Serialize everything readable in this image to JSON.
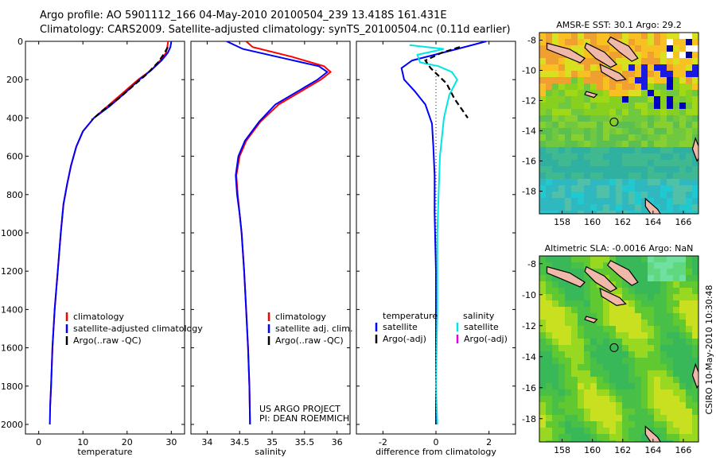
{
  "header": {
    "line1": "Argo profile: AO 5901112_166 04-May-2010 20100504_239 13.418S 161.431E",
    "line2": "Climatology: CARS2009. Satellite-adjusted climatology: synTS_20100504.nc (0.11d earlier)"
  },
  "credit": "CSIRO 10-May-2010 10:30:48",
  "colors": {
    "climatology": "#ff0000",
    "satellite": "#0000ff",
    "argo": "#000000",
    "sat_diff_sal": "#00e5e5",
    "argo_diff_sal": "#e000e0"
  },
  "chart_data": [
    {
      "type": "line",
      "id": "temperature",
      "xlabel": "temperature",
      "ylabel": "",
      "xlim": [
        -3,
        33
      ],
      "ylim": [
        2050,
        0
      ],
      "xticks": [
        0,
        10,
        20,
        30
      ],
      "yticks": [
        0,
        200,
        400,
        600,
        800,
        1000,
        1200,
        1400,
        1600,
        1800,
        2000
      ],
      "legend": {
        "position": "bottom-right",
        "entries": [
          "climatology",
          "satellite-adjusted climatology",
          "Argo(..raw -QC)"
        ]
      },
      "series": [
        {
          "name": "climatology",
          "color": "#ff0000",
          "points": [
            [
              29.3,
              0
            ],
            [
              29.1,
              30
            ],
            [
              28.8,
              60
            ],
            [
              27.5,
              100
            ],
            [
              25.5,
              150
            ],
            [
              22.5,
              200
            ],
            [
              19,
              270
            ],
            [
              15.5,
              340
            ],
            [
              12.5,
              400
            ],
            [
              10,
              470
            ],
            [
              8.5,
              550
            ],
            [
              7.3,
              650
            ],
            [
              6.4,
              750
            ],
            [
              5.6,
              850
            ],
            [
              5,
              1000
            ],
            [
              4.3,
              1200
            ],
            [
              3.6,
              1400
            ],
            [
              3.1,
              1600
            ],
            [
              2.8,
              1800
            ],
            [
              2.6,
              1900
            ]
          ]
        },
        {
          "name": "satellite-adjusted climatology",
          "color": "#0000ff",
          "points": [
            [
              30,
              0
            ],
            [
              29.8,
              30
            ],
            [
              29.2,
              60
            ],
            [
              27.8,
              100
            ],
            [
              25.5,
              150
            ],
            [
              22.8,
              200
            ],
            [
              19.5,
              270
            ],
            [
              16,
              340
            ],
            [
              12.5,
              400
            ],
            [
              10,
              470
            ],
            [
              8.5,
              550
            ],
            [
              7.3,
              650
            ],
            [
              6.4,
              750
            ],
            [
              5.6,
              850
            ],
            [
              5,
              1000
            ],
            [
              4.3,
              1200
            ],
            [
              3.6,
              1400
            ],
            [
              3.1,
              1600
            ],
            [
              2.8,
              1800
            ],
            [
              2.6,
              1900
            ],
            [
              2.5,
              2000
            ]
          ]
        },
        {
          "name": "Argo(..raw -QC)",
          "color": "#000000",
          "dashed": true,
          "points": [
            [
              29.2,
              30
            ],
            [
              28.5,
              60
            ],
            [
              27,
              110
            ],
            [
              24.5,
              170
            ],
            [
              21.5,
              230
            ],
            [
              18,
              300
            ],
            [
              14.5,
              360
            ],
            [
              12,
              410
            ]
          ]
        }
      ]
    },
    {
      "type": "line",
      "id": "salinity",
      "xlabel": "salinity",
      "ylabel": "",
      "xlim": [
        33.75,
        36.2
      ],
      "ylim": [
        2050,
        0
      ],
      "xticks": [
        34,
        34.5,
        35,
        35.5,
        36
      ],
      "legend": {
        "position": "bottom-right",
        "entries": [
          "climatology",
          "satellite adj. clim.",
          "Argo(..raw -QC)"
        ]
      },
      "annotation": [
        "US ARGO PROJECT",
        "PI: DEAN ROEMMICH"
      ],
      "series": [
        {
          "name": "climatology",
          "color": "#ff0000",
          "points": [
            [
              34.6,
              0
            ],
            [
              34.7,
              30
            ],
            [
              35.3,
              80
            ],
            [
              35.8,
              130
            ],
            [
              35.9,
              160
            ],
            [
              35.75,
              200
            ],
            [
              35.45,
              260
            ],
            [
              35.1,
              330
            ],
            [
              34.82,
              420
            ],
            [
              34.6,
              520
            ],
            [
              34.5,
              600
            ],
            [
              34.45,
              700
            ],
            [
              34.47,
              800
            ],
            [
              34.5,
              900
            ],
            [
              34.53,
              1000
            ],
            [
              34.57,
              1200
            ],
            [
              34.6,
              1400
            ],
            [
              34.63,
              1600
            ],
            [
              34.65,
              1800
            ],
            [
              34.66,
              2000
            ]
          ]
        },
        {
          "name": "satellite adj. clim.",
          "color": "#0000ff",
          "points": [
            [
              34.3,
              0
            ],
            [
              34.55,
              40
            ],
            [
              35.2,
              90
            ],
            [
              35.72,
              130
            ],
            [
              35.85,
              160
            ],
            [
              35.7,
              200
            ],
            [
              35.4,
              260
            ],
            [
              35.05,
              330
            ],
            [
              34.8,
              420
            ],
            [
              34.58,
              520
            ],
            [
              34.48,
              600
            ],
            [
              34.44,
              700
            ],
            [
              34.46,
              800
            ],
            [
              34.5,
              900
            ],
            [
              34.53,
              1000
            ],
            [
              34.57,
              1200
            ],
            [
              34.6,
              1400
            ],
            [
              34.63,
              1600
            ],
            [
              34.65,
              1800
            ],
            [
              34.66,
              2000
            ]
          ]
        }
      ]
    },
    {
      "type": "line",
      "id": "difference",
      "xlabel": "difference from climatology",
      "ylabel": "",
      "xlim": [
        -3,
        3
      ],
      "ylim": [
        2050,
        0
      ],
      "xticks": [
        -2,
        0,
        2
      ],
      "legend": {
        "position": "bottom",
        "col1_title": "temperature",
        "col2_title": "salinity",
        "entries": [
          "satellite",
          "Argo(-adj)",
          "satellite",
          "Argo(-adj)"
        ]
      },
      "series": [
        {
          "name": "temperature satellite",
          "color": "#0000ff",
          "points": [
            [
              1.9,
              0
            ],
            [
              0.8,
              40
            ],
            [
              -0.9,
              100
            ],
            [
              -1.3,
              140
            ],
            [
              -1.2,
              200
            ],
            [
              -0.8,
              260
            ],
            [
              -0.4,
              330
            ],
            [
              -0.15,
              430
            ],
            [
              -0.1,
              550
            ],
            [
              -0.05,
              700
            ],
            [
              -0.05,
              900
            ],
            [
              0,
              1200
            ],
            [
              0,
              1500
            ],
            [
              0,
              1800
            ],
            [
              0,
              2000
            ]
          ]
        },
        {
          "name": "salinity satellite",
          "color": "#00e5e5",
          "points": [
            [
              -1,
              20
            ],
            [
              0.3,
              40
            ],
            [
              -0.7,
              70
            ],
            [
              -0.6,
              110
            ],
            [
              0.1,
              130
            ],
            [
              0.6,
              160
            ],
            [
              0.8,
              200
            ],
            [
              0.5,
              280
            ],
            [
              0.3,
              400
            ],
            [
              0.15,
              600
            ],
            [
              0.1,
              800
            ],
            [
              0.05,
              1000
            ],
            [
              0.05,
              1400
            ],
            [
              0,
              1800
            ],
            [
              0.05,
              2000
            ]
          ]
        },
        {
          "name": "temperature Argo(-adj)",
          "color": "#000000",
          "dashed": true,
          "points": [
            [
              0.9,
              30
            ],
            [
              0.2,
              60
            ],
            [
              -0.4,
              100
            ],
            [
              -0.2,
              140
            ],
            [
              0.4,
              220
            ],
            [
              0.7,
              300
            ],
            [
              1.2,
              400
            ]
          ]
        },
        {
          "name": "zero",
          "color": "#000000",
          "dotted": true,
          "points": [
            [
              0,
              150
            ],
            [
              0,
              2000
            ]
          ]
        }
      ]
    },
    {
      "type": "heatmap",
      "id": "sst_map",
      "title": "AMSR-E SST: 30.1 Argo: 29.2",
      "xlim": [
        156.5,
        167
      ],
      "ylim": [
        -19.5,
        -7.5
      ],
      "xticks": [
        158,
        160,
        162,
        164,
        166
      ],
      "yticks": [
        -8,
        -10,
        -12,
        -14,
        -16,
        -18
      ],
      "marker": {
        "lon": 161.431,
        "lat": -13.418
      }
    },
    {
      "type": "heatmap",
      "id": "sla_map",
      "title": "Altimetric SLA: -0.0016 Argo: NaN",
      "xlim": [
        156.5,
        167
      ],
      "ylim": [
        -19.5,
        -7.5
      ],
      "xticks": [
        158,
        160,
        162,
        164,
        166
      ],
      "yticks": [
        -8,
        -10,
        -12,
        -14,
        -16,
        -18
      ],
      "marker": {
        "lon": 161.431,
        "lat": -13.418
      }
    }
  ]
}
